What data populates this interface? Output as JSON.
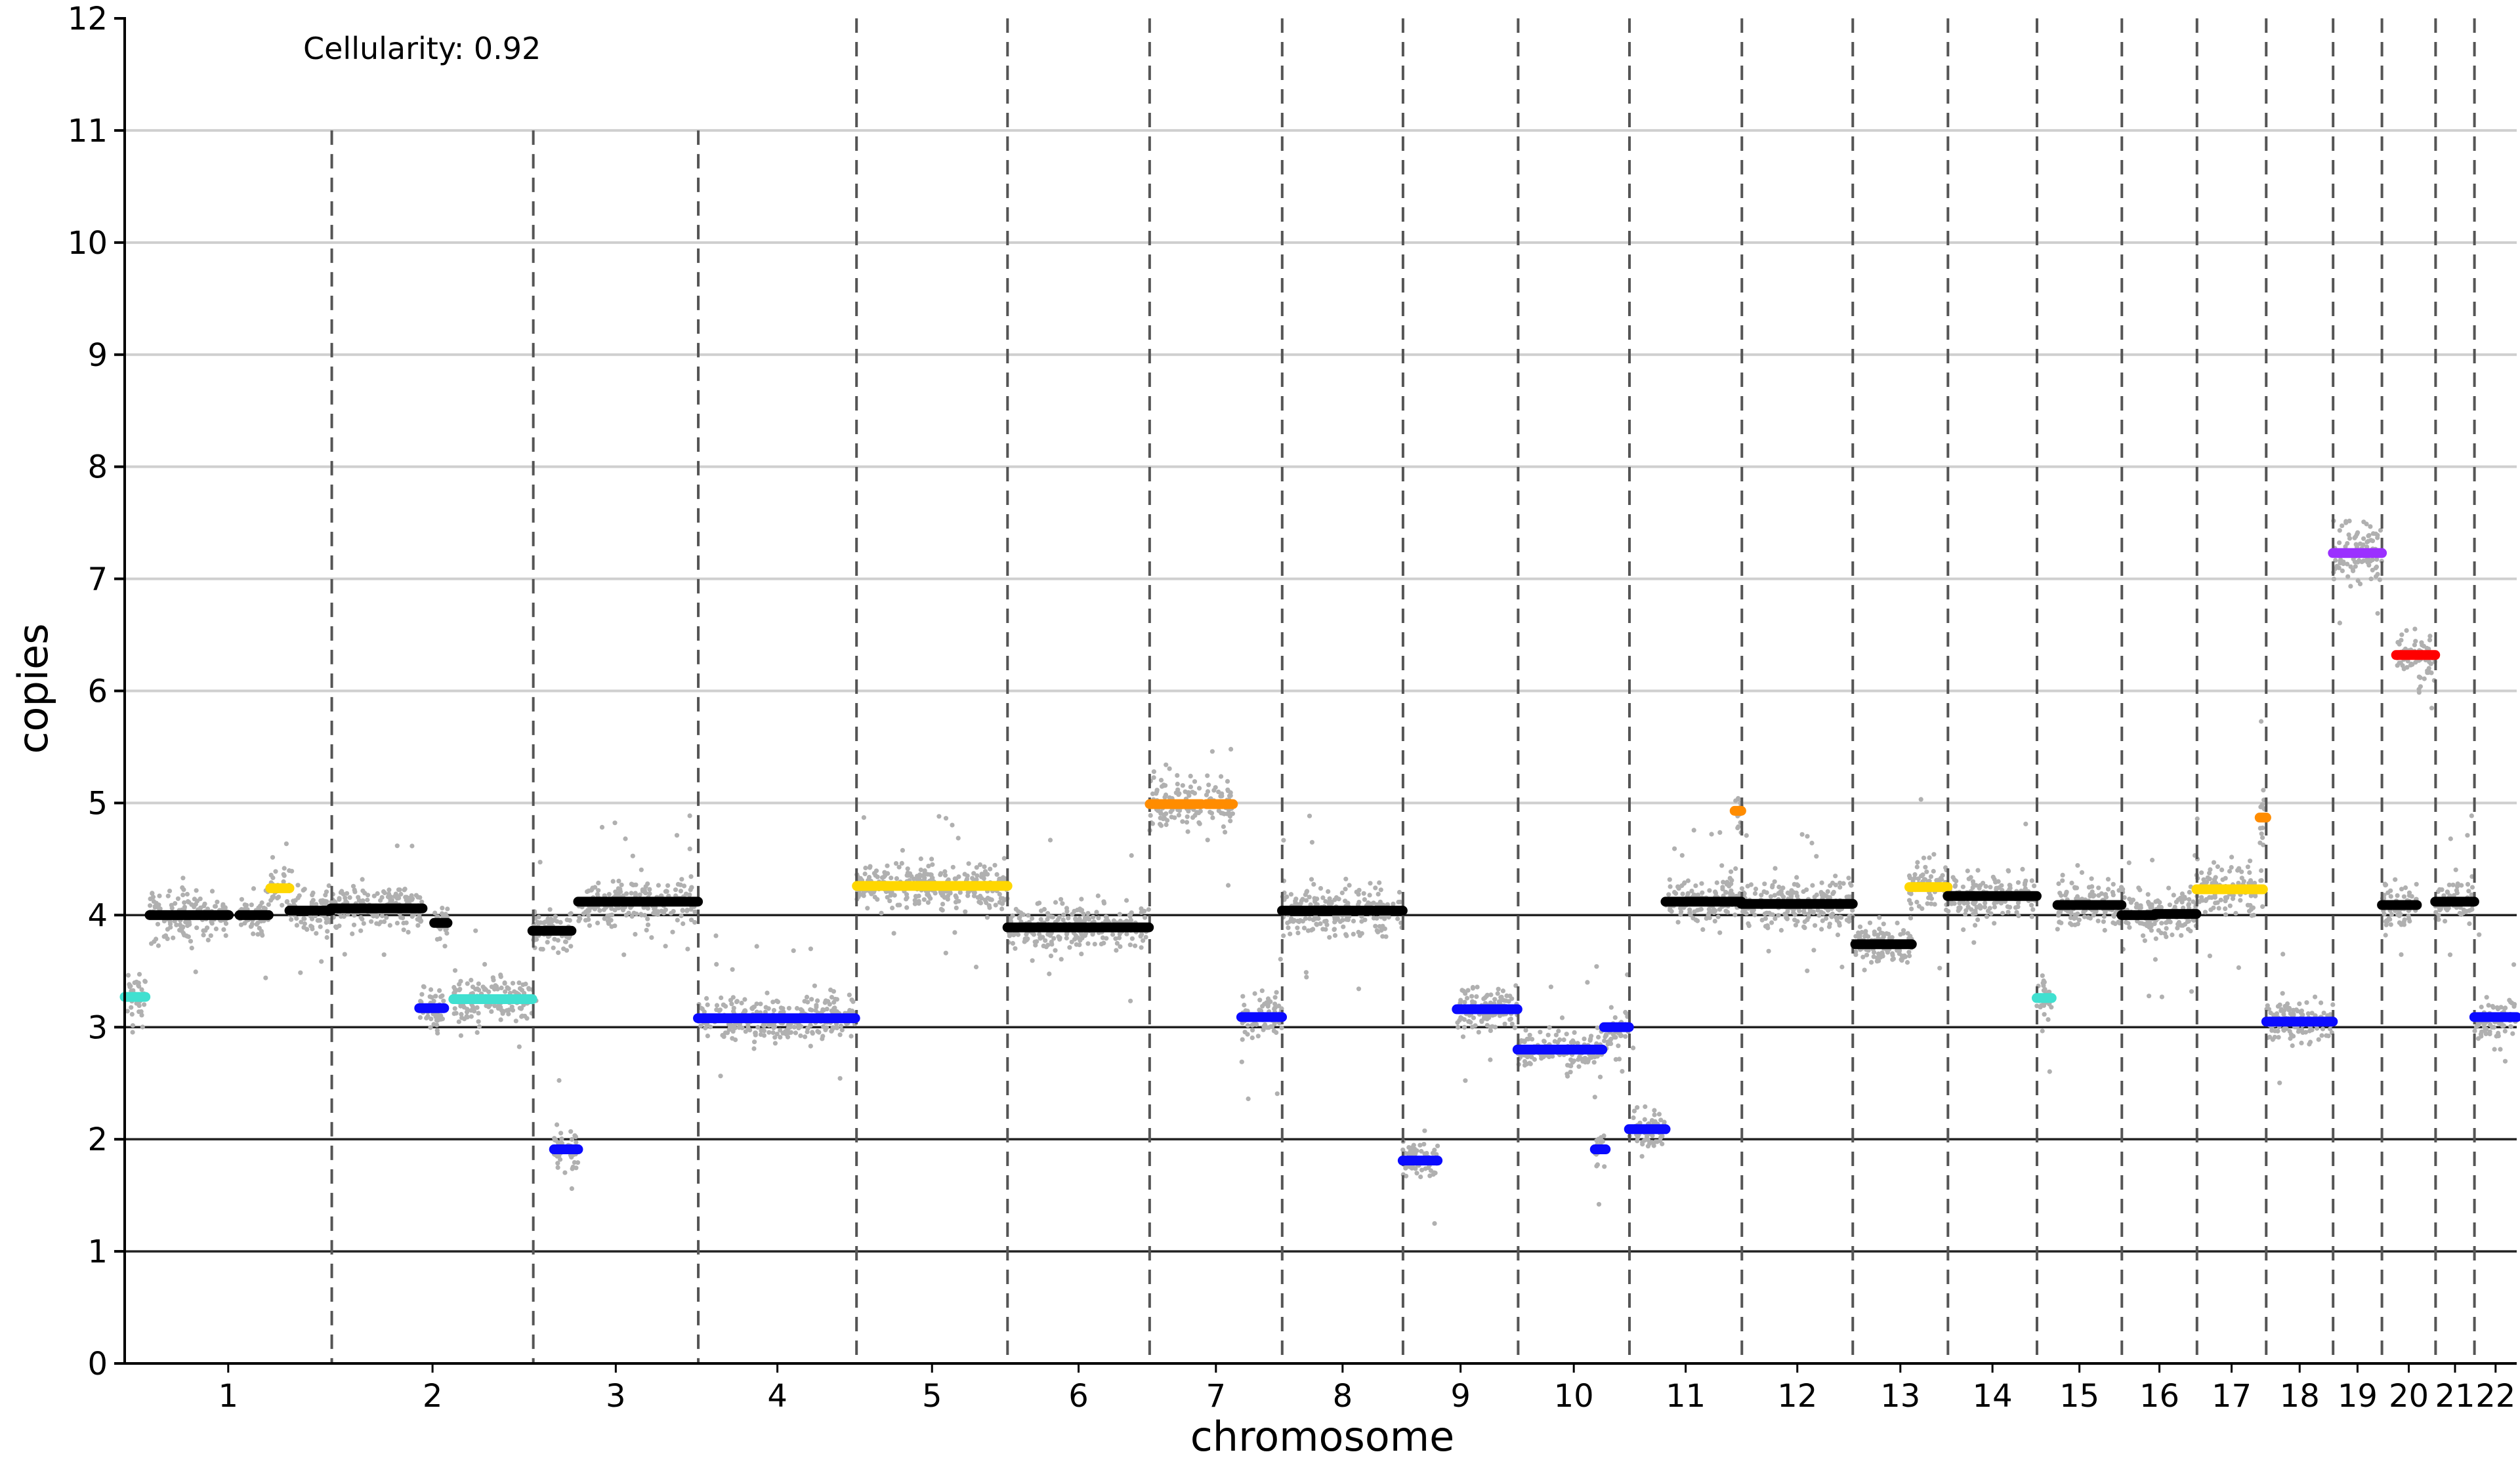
{
  "chart_data": {
    "type": "scatter",
    "annotation": "Cellularity: 0.92",
    "xlabel": "chromosome",
    "ylabel": "copies",
    "ylim": [
      0,
      12
    ],
    "yticks": [
      "0",
      "1",
      "2",
      "3",
      "4",
      "5",
      "6",
      "7",
      "8",
      "9",
      "10",
      "11",
      "12"
    ],
    "chromosomes": [
      {
        "label": "1",
        "start": 0.0,
        "end": 248.9
      },
      {
        "label": "2",
        "start": 248.9,
        "end": 491.1
      },
      {
        "label": "3",
        "start": 491.1,
        "end": 689.4
      },
      {
        "label": "4",
        "start": 689.4,
        "end": 879.6
      },
      {
        "label": "5",
        "start": 879.6,
        "end": 1061.1
      },
      {
        "label": "6",
        "start": 1061.1,
        "end": 1231.9
      },
      {
        "label": "7",
        "start": 1231.9,
        "end": 1391.2
      },
      {
        "label": "8",
        "start": 1391.2,
        "end": 1536.4
      },
      {
        "label": "9",
        "start": 1536.4,
        "end": 1674.8
      },
      {
        "label": "10",
        "start": 1674.8,
        "end": 1808.6
      },
      {
        "label": "11",
        "start": 1808.6,
        "end": 1943.7
      },
      {
        "label": "12",
        "start": 1943.7,
        "end": 2077.0
      },
      {
        "label": "13",
        "start": 2077.0,
        "end": 2191.4
      },
      {
        "label": "14",
        "start": 2191.4,
        "end": 2298.4
      },
      {
        "label": "15",
        "start": 2298.4,
        "end": 2400.4
      },
      {
        "label": "16",
        "start": 2400.4,
        "end": 2490.7
      },
      {
        "label": "17",
        "start": 2490.7,
        "end": 2573.9
      },
      {
        "label": "18",
        "start": 2573.9,
        "end": 2654.3
      },
      {
        "label": "19",
        "start": 2654.3,
        "end": 2713.0
      },
      {
        "label": "20",
        "start": 2713.0,
        "end": 2777.5
      },
      {
        "label": "21",
        "start": 2777.5,
        "end": 2824.2
      },
      {
        "label": "22",
        "start": 2824.2,
        "end": 2875.0
      }
    ],
    "segment_colors": {
      "normal": "#000000",
      "loss_one": "#0a0aff",
      "loss_partial": "#40e0d0",
      "gain_partial": "#ffd700",
      "gain_one": "#ff8c00",
      "gain_two": "#ff0000",
      "gain_three": "#9b30ff"
    },
    "point_color": "#b0b0b0",
    "segments": [
      {
        "chr": "1",
        "x0": 0,
        "x1": 25,
        "y": 3.27,
        "color": "#40e0d0"
      },
      {
        "chr": "1",
        "x0": 30,
        "x1": 125,
        "y": 4.0,
        "color": "#000000"
      },
      {
        "chr": "1",
        "x0": 138,
        "x1": 173,
        "y": 4.0,
        "color": "#000000"
      },
      {
        "chr": "1",
        "x0": 175,
        "x1": 198,
        "y": 4.24,
        "color": "#ffd700"
      },
      {
        "chr": "1",
        "x0": 198,
        "x1": 248,
        "y": 4.04,
        "color": "#000000"
      },
      {
        "chr": "2",
        "x0": 248,
        "x1": 358,
        "y": 4.06,
        "color": "#000000"
      },
      {
        "chr": "2",
        "x0": 354,
        "x1": 384,
        "y": 3.17,
        "color": "#0a0aff"
      },
      {
        "chr": "2",
        "x0": 372,
        "x1": 388,
        "y": 3.93,
        "color": "#000000"
      },
      {
        "chr": "2",
        "x0": 395,
        "x1": 490,
        "y": 3.25,
        "color": "#40e0d0"
      },
      {
        "chr": "3",
        "x0": 490,
        "x1": 537,
        "y": 3.86,
        "color": "#000000"
      },
      {
        "chr": "3",
        "x0": 516,
        "x1": 545,
        "y": 1.91,
        "color": "#0a0aff"
      },
      {
        "chr": "3",
        "x0": 545,
        "x1": 689,
        "y": 4.12,
        "color": "#000000"
      },
      {
        "chr": "4",
        "x0": 689,
        "x1": 878,
        "y": 3.08,
        "color": "#0a0aff"
      },
      {
        "chr": "5",
        "x0": 880,
        "x1": 1061,
        "y": 4.26,
        "color": "#ffd700"
      },
      {
        "chr": "6",
        "x0": 1061,
        "x1": 1231,
        "y": 3.89,
        "color": "#000000"
      },
      {
        "chr": "7",
        "x0": 1232,
        "x1": 1294,
        "y": 4.99,
        "color": "#ff8c00"
      },
      {
        "chr": "7",
        "x0": 1300,
        "x1": 1332,
        "y": 4.99,
        "color": "#ff8c00"
      },
      {
        "chr": "7",
        "x0": 1342,
        "x1": 1391,
        "y": 3.09,
        "color": "#0a0aff"
      },
      {
        "chr": "8",
        "x0": 1391,
        "x1": 1536,
        "y": 4.04,
        "color": "#000000"
      },
      {
        "chr": "9",
        "x0": 1536,
        "x1": 1578,
        "y": 1.81,
        "color": "#0a0aff"
      },
      {
        "chr": "9",
        "x0": 1601,
        "x1": 1674,
        "y": 3.16,
        "color": "#0a0aff"
      },
      {
        "chr": "10",
        "x0": 1674,
        "x1": 1776,
        "y": 2.8,
        "color": "#0a0aff"
      },
      {
        "chr": "10",
        "x0": 1767,
        "x1": 1780,
        "y": 1.91,
        "color": "#0a0aff"
      },
      {
        "chr": "10",
        "x0": 1778,
        "x1": 1808,
        "y": 3.0,
        "color": "#0a0aff"
      },
      {
        "chr": "11",
        "x0": 1808,
        "x1": 1852,
        "y": 2.09,
        "color": "#0a0aff"
      },
      {
        "chr": "11",
        "x0": 1852,
        "x1": 1943,
        "y": 4.12,
        "color": "#000000"
      },
      {
        "chr": "11",
        "x0": 1935,
        "x1": 1943,
        "y": 4.93,
        "color": "#ff8c00"
      },
      {
        "chr": "12",
        "x0": 1943,
        "x1": 2077,
        "y": 4.1,
        "color": "#000000"
      },
      {
        "chr": "13",
        "x0": 2080,
        "x1": 2148,
        "y": 3.74,
        "color": "#000000"
      },
      {
        "chr": "13",
        "x0": 2145,
        "x1": 2191,
        "y": 4.25,
        "color": "#ffd700"
      },
      {
        "chr": "14",
        "x0": 2191,
        "x1": 2298,
        "y": 4.17,
        "color": "#000000"
      },
      {
        "chr": "15",
        "x0": 2298,
        "x1": 2316,
        "y": 3.26,
        "color": "#40e0d0"
      },
      {
        "chr": "15",
        "x0": 2323,
        "x1": 2400,
        "y": 4.09,
        "color": "#000000"
      },
      {
        "chr": "16",
        "x0": 2400,
        "x1": 2440,
        "y": 4.0,
        "color": "#000000"
      },
      {
        "chr": "16",
        "x0": 2440,
        "x1": 2490,
        "y": 4.01,
        "color": "#000000"
      },
      {
        "chr": "17",
        "x0": 2490,
        "x1": 2570,
        "y": 4.23,
        "color": "#ffd700"
      },
      {
        "chr": "17",
        "x0": 2566,
        "x1": 2574,
        "y": 4.87,
        "color": "#ff8c00"
      },
      {
        "chr": "18",
        "x0": 2574,
        "x1": 2654,
        "y": 3.05,
        "color": "#0a0aff"
      },
      {
        "chr": "19",
        "x0": 2654,
        "x1": 2713,
        "y": 7.23,
        "color": "#9b30ff"
      },
      {
        "chr": "20",
        "x0": 2713,
        "x1": 2755,
        "y": 4.09,
        "color": "#000000"
      },
      {
        "chr": "20",
        "x0": 2730,
        "x1": 2777,
        "y": 6.32,
        "color": "#ff0000"
      },
      {
        "chr": "21",
        "x0": 2777,
        "x1": 2824,
        "y": 4.12,
        "color": "#000000"
      },
      {
        "chr": "22",
        "x0": 2824,
        "x1": 2875,
        "y": 3.09,
        "color": "#0a0aff"
      }
    ]
  }
}
